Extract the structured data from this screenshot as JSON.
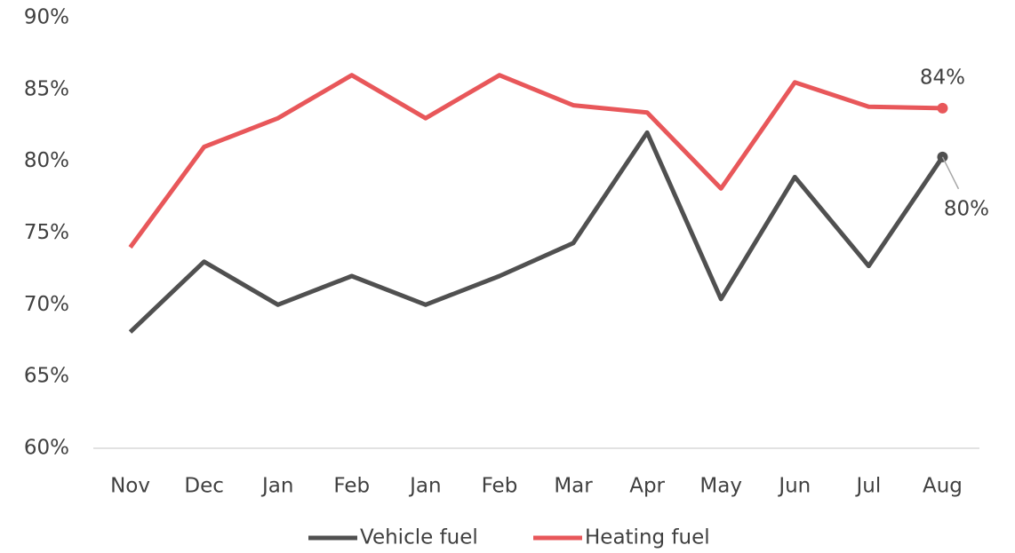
{
  "chart_data": {
    "type": "line",
    "categories": [
      "Nov",
      "Dec",
      "Jan",
      "Feb",
      "Jan",
      "Feb",
      "Mar",
      "Apr",
      "May",
      "Jun",
      "Jul",
      "Aug"
    ],
    "series": [
      {
        "name": "Vehicle fuel",
        "color": "#505050",
        "values": [
          68.1,
          73,
          70,
          72,
          70,
          72,
          74.3,
          82,
          70.4,
          78.9,
          72.7,
          80.3
        ],
        "value_labels": [
          null,
          null,
          null,
          null,
          null,
          null,
          null,
          null,
          null,
          null,
          null,
          "80%"
        ]
      },
      {
        "name": "Heating fuel",
        "color": "#e8575a",
        "values": [
          74,
          81,
          83,
          86,
          83,
          86,
          83.9,
          83.4,
          78.1,
          85.5,
          83.8,
          83.7
        ],
        "value_labels": [
          null,
          null,
          null,
          null,
          null,
          null,
          null,
          null,
          null,
          null,
          null,
          "84%"
        ]
      }
    ],
    "ylim": [
      60,
      90
    ],
    "yticks": [
      {
        "value": 60,
        "label": "60%"
      },
      {
        "value": 65,
        "label": "65%"
      },
      {
        "value": 70,
        "label": "70%"
      },
      {
        "value": 75,
        "label": "75%"
      },
      {
        "value": 80,
        "label": "80%"
      },
      {
        "value": 85,
        "label": "85%"
      },
      {
        "value": 90,
        "label": "90%"
      }
    ],
    "grid": false,
    "legend": "bottom"
  }
}
